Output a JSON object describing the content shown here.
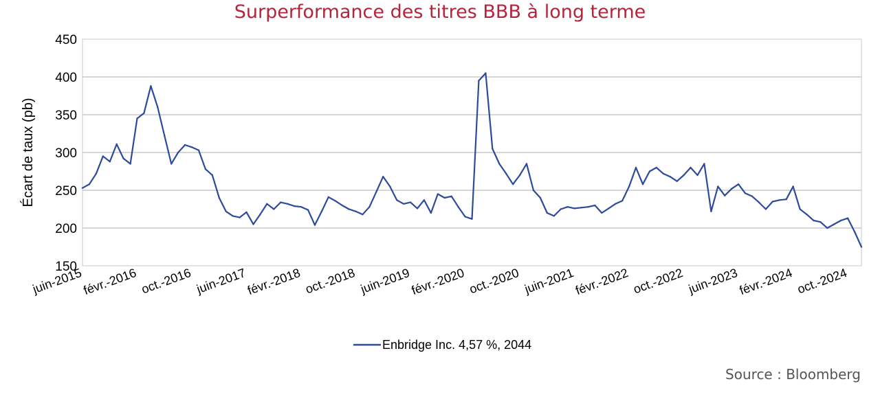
{
  "chart_data": {
    "type": "line",
    "title": "Surperformance des titres BBB à long terme",
    "ylabel": "Écart de taux (pb)",
    "xlabel": "",
    "ylim": [
      150,
      450
    ],
    "yticks": [
      150,
      200,
      250,
      300,
      350,
      400,
      450
    ],
    "xlim": [
      "2015-06",
      "2024-12"
    ],
    "xticks": [
      {
        "date": "2015-06",
        "label": "juin-2015"
      },
      {
        "date": "2016-02",
        "label": "févr.-2016"
      },
      {
        "date": "2016-10",
        "label": "oct.-2016"
      },
      {
        "date": "2017-06",
        "label": "juin-2017"
      },
      {
        "date": "2018-02",
        "label": "févr.-2018"
      },
      {
        "date": "2018-10",
        "label": "oct.-2018"
      },
      {
        "date": "2019-06",
        "label": "juin-2019"
      },
      {
        "date": "2020-02",
        "label": "févr.-2020"
      },
      {
        "date": "2020-10",
        "label": "oct.-2020"
      },
      {
        "date": "2021-06",
        "label": "juin-2021"
      },
      {
        "date": "2022-02",
        "label": "févr.-2022"
      },
      {
        "date": "2022-10",
        "label": "oct.-2022"
      },
      {
        "date": "2023-06",
        "label": "juin-2023"
      },
      {
        "date": "2024-02",
        "label": "févr.-2024"
      },
      {
        "date": "2024-10",
        "label": "oct.-2024"
      }
    ],
    "grid": true,
    "legend_position": "bottom",
    "line_color": "#2e4a9a",
    "series": [
      {
        "name": "Enbridge Inc. 4,57 %, 2044",
        "data": [
          [
            "2015-06",
            253
          ],
          [
            "2015-07",
            258
          ],
          [
            "2015-08",
            272
          ],
          [
            "2015-09",
            295
          ],
          [
            "2015-10",
            288
          ],
          [
            "2015-11",
            311
          ],
          [
            "2015-12",
            292
          ],
          [
            "2016-01",
            285
          ],
          [
            "2016-02",
            345
          ],
          [
            "2016-03",
            352
          ],
          [
            "2016-04",
            388
          ],
          [
            "2016-05",
            360
          ],
          [
            "2016-06",
            322
          ],
          [
            "2016-07",
            285
          ],
          [
            "2016-08",
            300
          ],
          [
            "2016-09",
            310
          ],
          [
            "2016-10",
            307
          ],
          [
            "2016-11",
            303
          ],
          [
            "2016-12",
            278
          ],
          [
            "2017-01",
            270
          ],
          [
            "2017-02",
            240
          ],
          [
            "2017-03",
            222
          ],
          [
            "2017-04",
            216
          ],
          [
            "2017-05",
            214
          ],
          [
            "2017-06",
            221
          ],
          [
            "2017-07",
            205
          ],
          [
            "2017-08",
            218
          ],
          [
            "2017-09",
            232
          ],
          [
            "2017-10",
            225
          ],
          [
            "2017-11",
            234
          ],
          [
            "2017-12",
            232
          ],
          [
            "2018-01",
            229
          ],
          [
            "2018-02",
            228
          ],
          [
            "2018-03",
            224
          ],
          [
            "2018-04",
            204
          ],
          [
            "2018-05",
            222
          ],
          [
            "2018-06",
            241
          ],
          [
            "2018-07",
            236
          ],
          [
            "2018-08",
            230
          ],
          [
            "2018-09",
            225
          ],
          [
            "2018-10",
            222
          ],
          [
            "2018-11",
            218
          ],
          [
            "2018-12",
            228
          ],
          [
            "2019-01",
            248
          ],
          [
            "2019-02",
            268
          ],
          [
            "2019-03",
            255
          ],
          [
            "2019-04",
            237
          ],
          [
            "2019-05",
            232
          ],
          [
            "2019-06",
            234
          ],
          [
            "2019-07",
            226
          ],
          [
            "2019-08",
            237
          ],
          [
            "2019-09",
            220
          ],
          [
            "2019-10",
            245
          ],
          [
            "2019-11",
            240
          ],
          [
            "2019-12",
            242
          ],
          [
            "2020-01",
            228
          ],
          [
            "2020-02",
            215
          ],
          [
            "2020-03",
            212
          ],
          [
            "2020-04",
            395
          ],
          [
            "2020-05",
            405
          ],
          [
            "2020-06",
            305
          ],
          [
            "2020-07",
            285
          ],
          [
            "2020-08",
            272
          ],
          [
            "2020-09",
            258
          ],
          [
            "2020-10",
            270
          ],
          [
            "2020-11",
            285
          ],
          [
            "2020-12",
            250
          ],
          [
            "2021-01",
            240
          ],
          [
            "2021-02",
            220
          ],
          [
            "2021-03",
            216
          ],
          [
            "2021-04",
            225
          ],
          [
            "2021-05",
            228
          ],
          [
            "2021-06",
            226
          ],
          [
            "2021-07",
            227
          ],
          [
            "2021-08",
            228
          ],
          [
            "2021-09",
            230
          ],
          [
            "2021-10",
            220
          ],
          [
            "2021-11",
            226
          ],
          [
            "2021-12",
            232
          ],
          [
            "2022-01",
            236
          ],
          [
            "2022-02",
            255
          ],
          [
            "2022-03",
            280
          ],
          [
            "2022-04",
            258
          ],
          [
            "2022-05",
            275
          ],
          [
            "2022-06",
            280
          ],
          [
            "2022-07",
            272
          ],
          [
            "2022-08",
            268
          ],
          [
            "2022-09",
            262
          ],
          [
            "2022-10",
            270
          ],
          [
            "2022-11",
            280
          ],
          [
            "2022-12",
            270
          ],
          [
            "2023-01",
            285
          ],
          [
            "2023-02",
            222
          ],
          [
            "2023-03",
            255
          ],
          [
            "2023-04",
            243
          ],
          [
            "2023-05",
            252
          ],
          [
            "2023-06",
            258
          ],
          [
            "2023-07",
            246
          ],
          [
            "2023-08",
            242
          ],
          [
            "2023-09",
            234
          ],
          [
            "2023-10",
            225
          ],
          [
            "2023-11",
            235
          ],
          [
            "2023-12",
            237
          ],
          [
            "2024-01",
            238
          ],
          [
            "2024-02",
            255
          ],
          [
            "2024-03",
            225
          ],
          [
            "2024-04",
            218
          ],
          [
            "2024-05",
            210
          ],
          [
            "2024-06",
            208
          ],
          [
            "2024-07",
            200
          ],
          [
            "2024-08",
            205
          ],
          [
            "2024-09",
            210
          ],
          [
            "2024-10",
            213
          ],
          [
            "2024-11",
            195
          ],
          [
            "2024-12",
            175
          ]
        ]
      }
    ],
    "source": "Source : Bloomberg"
  }
}
